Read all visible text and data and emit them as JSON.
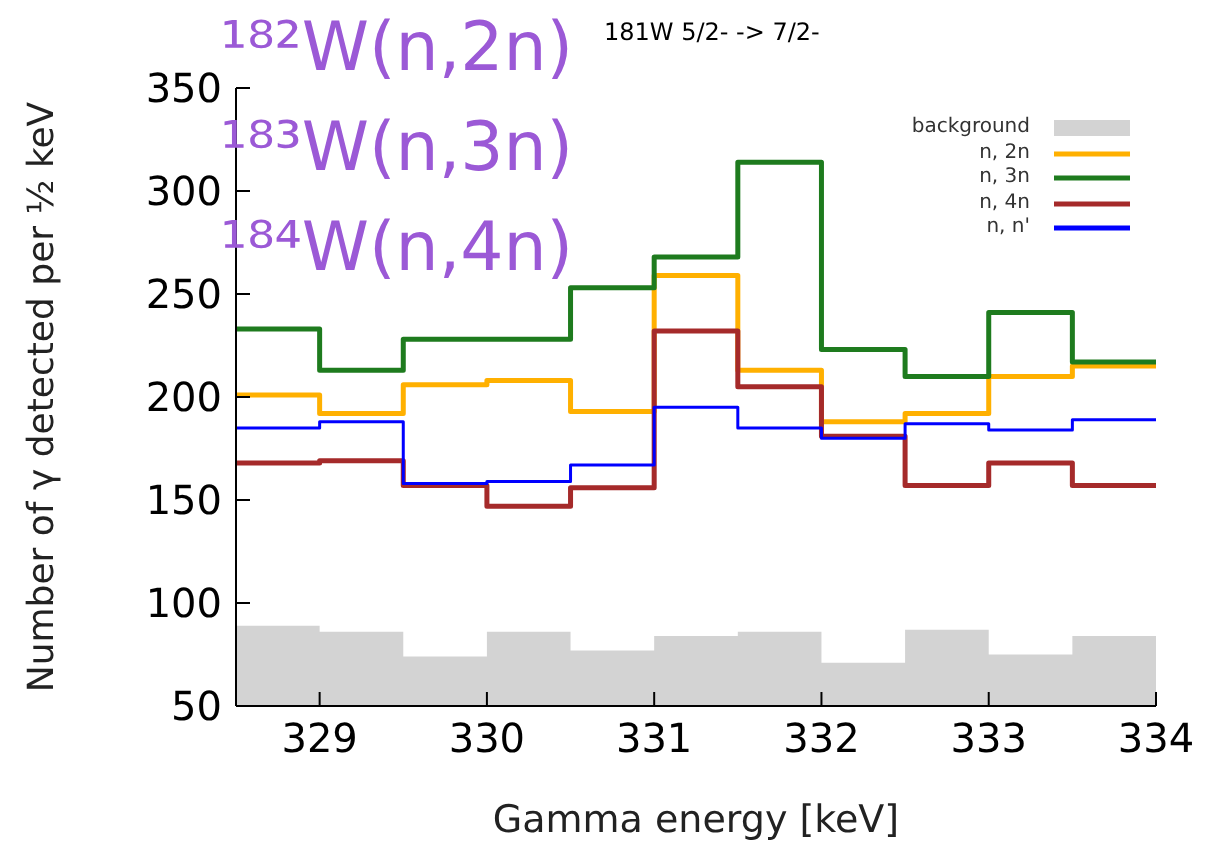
{
  "chart_data": {
    "type": "step",
    "title": "181W 5/2- -> 7/2-",
    "xlabel": "Gamma energy [keV]",
    "ylabel": "Number of γ detected per ½ keV",
    "annotations": [
      "¹⁸²W(n,2n)",
      "¹⁸³W(n,3n)",
      "¹⁸⁴W(n,4n)"
    ],
    "x": [
      328.5,
      329,
      329.5,
      330,
      330.5,
      331,
      331.5,
      332,
      332.5,
      333,
      333.5,
      334
    ],
    "series": [
      {
        "name": "background",
        "type": "area",
        "color": "#d3d3d3",
        "values": [
          89,
          86,
          74,
          86,
          77,
          84,
          86,
          71,
          87,
          75,
          84,
          84
        ]
      },
      {
        "name": "n, 2n",
        "color": "#ffb000",
        "values": [
          201,
          192,
          206,
          208,
          193,
          259,
          213,
          188,
          192,
          210,
          215,
          215
        ]
      },
      {
        "name": "n, 3n",
        "color": "#1e7b1e",
        "values": [
          233,
          213,
          228,
          228,
          253,
          268,
          314,
          223,
          210,
          241,
          217,
          217
        ]
      },
      {
        "name": "n, 4n",
        "color": "#a52a2a",
        "values": [
          168,
          169,
          157,
          147,
          156,
          232,
          205,
          181,
          157,
          168,
          157,
          157
        ]
      },
      {
        "name": "n, n'",
        "color": "#0000ff",
        "values": [
          185,
          188,
          158,
          159,
          167,
          195,
          185,
          180,
          187,
          184,
          189,
          189
        ]
      }
    ],
    "xlim": [
      328.5,
      334
    ],
    "xticks": [
      329,
      330,
      331,
      332,
      333,
      334
    ],
    "ylim": [
      50,
      350
    ],
    "yticks": [
      50,
      100,
      150,
      200,
      250,
      300,
      350
    ],
    "grid": false,
    "legend": "top right"
  }
}
